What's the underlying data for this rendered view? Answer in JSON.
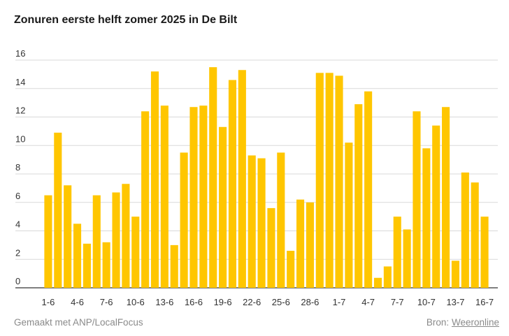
{
  "title": "Zonuren eerste helft zomer 2025 in De Bilt",
  "footer": {
    "made_with": "Gemaakt met ANP/LocalFocus",
    "source_label": "Bron:",
    "source_link": "Weeronline"
  },
  "colors": {
    "bar": "#ffc600",
    "grid": "#d9d9d9",
    "axis": "#333333"
  },
  "chart_data": {
    "type": "bar",
    "title": "Zonuren eerste helft zomer 2025 in De Bilt",
    "xlabel": "",
    "ylabel": "",
    "ylim": [
      0,
      16
    ],
    "yticks": [
      0,
      2,
      4,
      6,
      8,
      10,
      12,
      14,
      16
    ],
    "grid": true,
    "categories": [
      "1-6",
      "2-6",
      "3-6",
      "4-6",
      "5-6",
      "6-6",
      "7-6",
      "8-6",
      "9-6",
      "10-6",
      "11-6",
      "12-6",
      "13-6",
      "14-6",
      "15-6",
      "16-6",
      "17-6",
      "18-6",
      "19-6",
      "20-6",
      "21-6",
      "22-6",
      "23-6",
      "24-6",
      "25-6",
      "26-6",
      "27-6",
      "28-6",
      "29-6",
      "30-6",
      "1-7",
      "2-7",
      "3-7",
      "4-7",
      "5-7",
      "6-7",
      "7-7",
      "8-7",
      "9-7",
      "10-7",
      "11-7",
      "12-7",
      "13-7",
      "14-7",
      "15-7",
      "16-7"
    ],
    "x_tick_labels": [
      "1-6",
      "4-6",
      "7-6",
      "10-6",
      "13-6",
      "16-6",
      "19-6",
      "22-6",
      "25-6",
      "28-6",
      "1-7",
      "4-7",
      "7-7",
      "10-7",
      "13-7",
      "16-7"
    ],
    "values": [
      6.5,
      10.9,
      7.2,
      4.5,
      3.1,
      6.5,
      3.2,
      6.7,
      7.3,
      5.0,
      12.4,
      15.2,
      12.8,
      3.0,
      9.5,
      12.7,
      12.8,
      15.5,
      11.3,
      14.6,
      15.3,
      9.3,
      9.1,
      5.6,
      9.5,
      2.6,
      6.2,
      6.0,
      15.1,
      15.1,
      14.9,
      10.2,
      12.9,
      13.8,
      0.7,
      1.5,
      5.0,
      4.1,
      12.4,
      9.8,
      11.4,
      12.7,
      1.9,
      8.1,
      7.4,
      5.0
    ]
  }
}
